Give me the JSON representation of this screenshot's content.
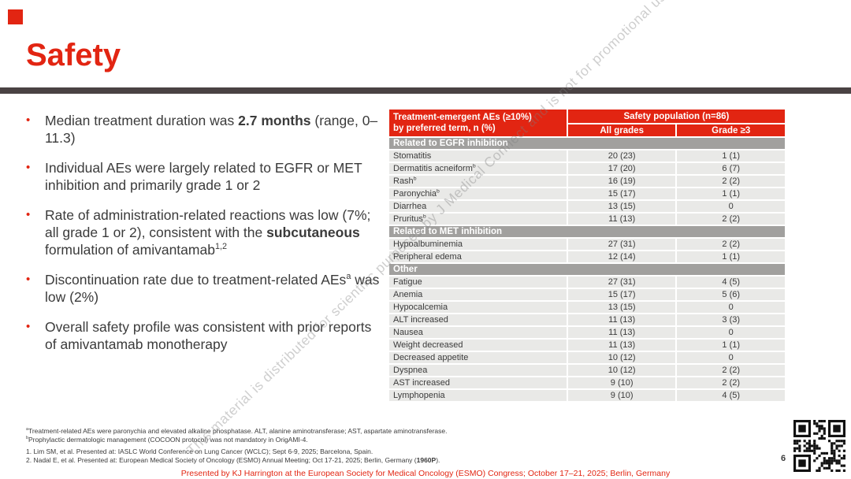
{
  "slide": {
    "title": "Safety",
    "page_number": "6",
    "footer": "Presented by KJ Harrington at the European Society for Medical Oncology (ESMO) Congress; October 17–21, 2025; Berlin, Germany",
    "watermark": "This material is distributed for scientific purposes by J Medical Connect and is not for promotional use"
  },
  "colors": {
    "accent_red": "#E22512",
    "title_rule_dark": "#4A4243",
    "section_band_gray": "#A1A09E",
    "table_row_bg": "#E9E9E7",
    "body_text": "#3B3B3B",
    "watermark_gray": "#7D7D7D"
  },
  "icons": {
    "qr_code": "qr-code"
  },
  "bullets": [
    {
      "segments": [
        {
          "t": "Median treatment duration was "
        },
        {
          "t": "2.7 months",
          "b": true
        },
        {
          "t": " (range, 0–11.3)"
        }
      ]
    },
    {
      "segments": [
        {
          "t": "Individual AEs were largely related to EGFR or MET inhibition and primarily grade 1 or 2"
        }
      ]
    },
    {
      "segments": [
        {
          "t": "Rate of administration-related reactions was low (7%; all grade 1 or 2), consistent with the "
        },
        {
          "t": "subcutaneous",
          "b": true
        },
        {
          "t": " formulation of amivantamab"
        },
        {
          "t": "1,2",
          "sup": true
        }
      ]
    },
    {
      "segments": [
        {
          "t": "Discontinuation rate due to treatment-related AEs"
        },
        {
          "t": "a",
          "sup": true
        },
        {
          "t": " was low (2%)"
        }
      ]
    },
    {
      "segments": [
        {
          "t": "Overall safety profile was consistent with prior reports of amivantamab monotherapy"
        }
      ]
    }
  ],
  "table": {
    "header": {
      "term_lines": [
        "Treatment-emergent AEs (≥10%)",
        "by preferred term, n (%)"
      ],
      "population": "Safety population (n=86)",
      "columns": [
        "All grades",
        "Grade ≥3"
      ]
    },
    "sections": [
      {
        "label": "Related to EGFR inhibition",
        "rows": [
          {
            "term": "Stomatitis",
            "sup": "",
            "all_grades": "20 (23)",
            "grade3": "1 (1)"
          },
          {
            "term": "Dermatitis acneiform",
            "sup": "b",
            "all_grades": "17 (20)",
            "grade3": "6 (7)"
          },
          {
            "term": "Rash",
            "sup": "b",
            "all_grades": "16 (19)",
            "grade3": "2 (2)"
          },
          {
            "term": "Paronychia",
            "sup": "b",
            "all_grades": "15 (17)",
            "grade3": "1 (1)"
          },
          {
            "term": "Diarrhea",
            "sup": "",
            "all_grades": "13 (15)",
            "grade3": "0"
          },
          {
            "term": "Pruritus",
            "sup": "b",
            "all_grades": "11 (13)",
            "grade3": "2 (2)"
          }
        ]
      },
      {
        "label": "Related to MET inhibition",
        "rows": [
          {
            "term": "Hypoalbuminemia",
            "sup": "",
            "all_grades": "27 (31)",
            "grade3": "2 (2)"
          },
          {
            "term": "Peripheral edema",
            "sup": "",
            "all_grades": "12 (14)",
            "grade3": "1 (1)"
          }
        ]
      },
      {
        "label": "Other",
        "rows": [
          {
            "term": "Fatigue",
            "sup": "",
            "all_grades": "27 (31)",
            "grade3": "4 (5)"
          },
          {
            "term": "Anemia",
            "sup": "",
            "all_grades": "15 (17)",
            "grade3": "5 (6)"
          },
          {
            "term": "Hypocalcemia",
            "sup": "",
            "all_grades": "13 (15)",
            "grade3": "0"
          },
          {
            "term": "ALT increased",
            "sup": "",
            "all_grades": "11 (13)",
            "grade3": "3 (3)"
          },
          {
            "term": "Nausea",
            "sup": "",
            "all_grades": "11 (13)",
            "grade3": "0"
          },
          {
            "term": "Weight decreased",
            "sup": "",
            "all_grades": "11 (13)",
            "grade3": "1 (1)"
          },
          {
            "term": "Decreased appetite",
            "sup": "",
            "all_grades": "10 (12)",
            "grade3": "0"
          },
          {
            "term": "Dyspnea",
            "sup": "",
            "all_grades": "10 (12)",
            "grade3": "2 (2)"
          },
          {
            "term": "AST increased",
            "sup": "",
            "all_grades": "9 (10)",
            "grade3": "2 (2)"
          },
          {
            "term": "Lymphopenia",
            "sup": "",
            "all_grades": "9 (10)",
            "grade3": "4 (5)"
          }
        ]
      }
    ]
  },
  "footnotes": [
    {
      "segments": [
        {
          "t": "a",
          "sup": true
        },
        {
          "t": "Treatment-related AEs were paronychia and elevated alkaline phosphatase. ALT, alanine aminotransferase; AST, aspartate aminotransferase."
        }
      ]
    },
    {
      "segments": [
        {
          "t": "b",
          "sup": true
        },
        {
          "t": "Prophylactic dermatologic management (COCOON protocol) was not mandatory in OrigAMI-4."
        }
      ]
    }
  ],
  "references": [
    {
      "segments": [
        {
          "t": "1. Lim SM, et al. Presented at: IASLC World Conference on Lung Cancer (WCLC); Sept 6-9, 2025; Barcelona, Spain."
        }
      ]
    },
    {
      "segments": [
        {
          "t": "2. Nadal E, et al. Presented at: European Medical Society of Oncology (ESMO) Annual Meeting; Oct 17-21, 2025; Berlin, Germany ("
        },
        {
          "t": "1960P",
          "b": true
        },
        {
          "t": ")."
        }
      ]
    }
  ]
}
